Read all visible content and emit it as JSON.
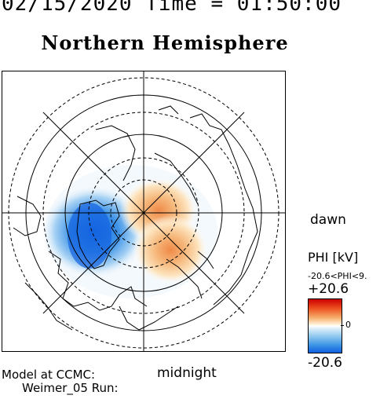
{
  "header": {
    "date": "02/15/2020",
    "time_label": "Time =",
    "time_value": "01:50:00"
  },
  "title": "Northern Hemisphere",
  "labels": {
    "dawn": "dawn",
    "midnight": "midnight"
  },
  "colorbar": {
    "title": "PHI [kV]",
    "range_text": "-20.6<PHI<9.",
    "max_label": "+20.6",
    "zero_label": "0",
    "min_label": "-20.6",
    "colors": {
      "positive": "#cc0000",
      "mid": "#ffffff",
      "negative": "#1060e0"
    }
  },
  "credits": {
    "line1": "Model at CCMC:",
    "line2": "Weimer_05 Run:"
  },
  "map": {
    "projection": "polar",
    "hemisphere": "north",
    "potential_cells": [
      {
        "sign": "negative",
        "side": "dusk-left",
        "color": "#1f7ae6"
      },
      {
        "sign": "positive",
        "side": "dawn-right",
        "color": "#f0a060"
      }
    ]
  }
}
